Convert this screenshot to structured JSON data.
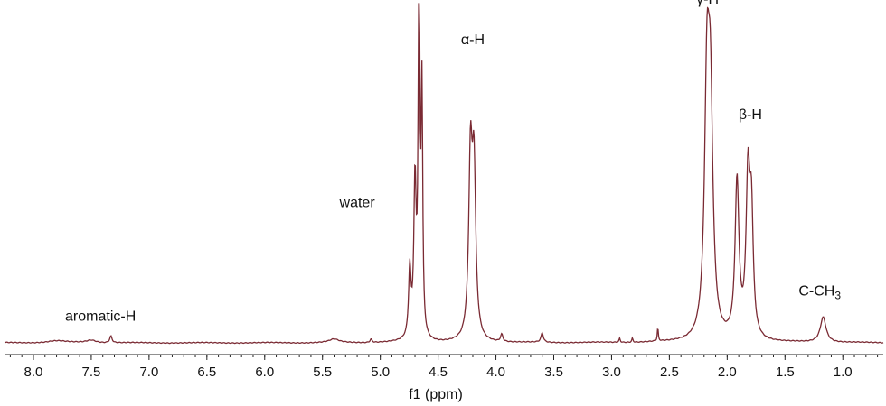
{
  "chart_data": {
    "type": "line",
    "title": "",
    "xlabel": "f1 (ppm)",
    "ylabel": "",
    "xlim": [
      8.25,
      0.65
    ],
    "x_reversed": true,
    "ylim": [
      0,
      1.0
    ],
    "grid": false,
    "legend": "none",
    "line_color": "#7a2a33",
    "xticks": [
      "8.0",
      "7.5",
      "7.0",
      "6.5",
      "6.0",
      "5.5",
      "5.0",
      "4.5",
      "4.0",
      "3.5",
      "3.0",
      "2.5",
      "2.0",
      "1.5",
      "1.0"
    ],
    "tick_values": [
      8.0,
      7.5,
      7.0,
      6.5,
      6.0,
      5.5,
      5.0,
      4.5,
      4.0,
      3.5,
      3.0,
      2.5,
      2.0,
      1.5,
      1.0
    ],
    "series": [
      {
        "peaks": [
          {
            "x": 7.8,
            "y": 0.006,
            "w": 0.1
          },
          {
            "x": 7.5,
            "y": 0.008,
            "w": 0.05
          },
          {
            "x": 7.33,
            "y": 0.02,
            "w": 0.012
          },
          {
            "x": 5.4,
            "y": 0.01,
            "w": 0.05
          },
          {
            "x": 5.08,
            "y": 0.01,
            "w": 0.01
          },
          {
            "x": 4.745,
            "y": 0.2,
            "w": 0.012
          },
          {
            "x": 4.7,
            "y": 0.45,
            "w": 0.012
          },
          {
            "x": 4.665,
            "y": 1.2,
            "w": 0.008
          },
          {
            "x": 4.64,
            "y": 0.7,
            "w": 0.008
          },
          {
            "x": 4.22,
            "y": 0.52,
            "w": 0.018
          },
          {
            "x": 4.19,
            "y": 0.48,
            "w": 0.018
          },
          {
            "x": 3.95,
            "y": 0.022,
            "w": 0.012
          },
          {
            "x": 3.6,
            "y": 0.028,
            "w": 0.012
          },
          {
            "x": 2.93,
            "y": 0.012,
            "w": 0.006
          },
          {
            "x": 2.82,
            "y": 0.012,
            "w": 0.006
          },
          {
            "x": 2.6,
            "y": 0.04,
            "w": 0.005
          },
          {
            "x": 2.175,
            "y": 0.7,
            "w": 0.025
          },
          {
            "x": 2.145,
            "y": 0.62,
            "w": 0.025
          },
          {
            "x": 1.915,
            "y": 0.46,
            "w": 0.02
          },
          {
            "x": 1.82,
            "y": 0.46,
            "w": 0.02
          },
          {
            "x": 1.79,
            "y": 0.33,
            "w": 0.018
          },
          {
            "x": 1.17,
            "y": 0.075,
            "w": 0.03
          }
        ]
      }
    ],
    "annotations": [
      {
        "text": "aromatic-H",
        "x": 7.42,
        "y": 0.065
      },
      {
        "text": "water",
        "x": 5.2,
        "y": 0.4
      },
      {
        "text": "α-H",
        "x": 4.2,
        "y": 0.88
      },
      {
        "text": "γ-H",
        "x": 2.17,
        "y": 1.0
      },
      {
        "text": "β-H",
        "x": 1.8,
        "y": 0.66
      },
      {
        "text": "C-CH3",
        "x": 1.2,
        "y": 0.14
      }
    ]
  }
}
